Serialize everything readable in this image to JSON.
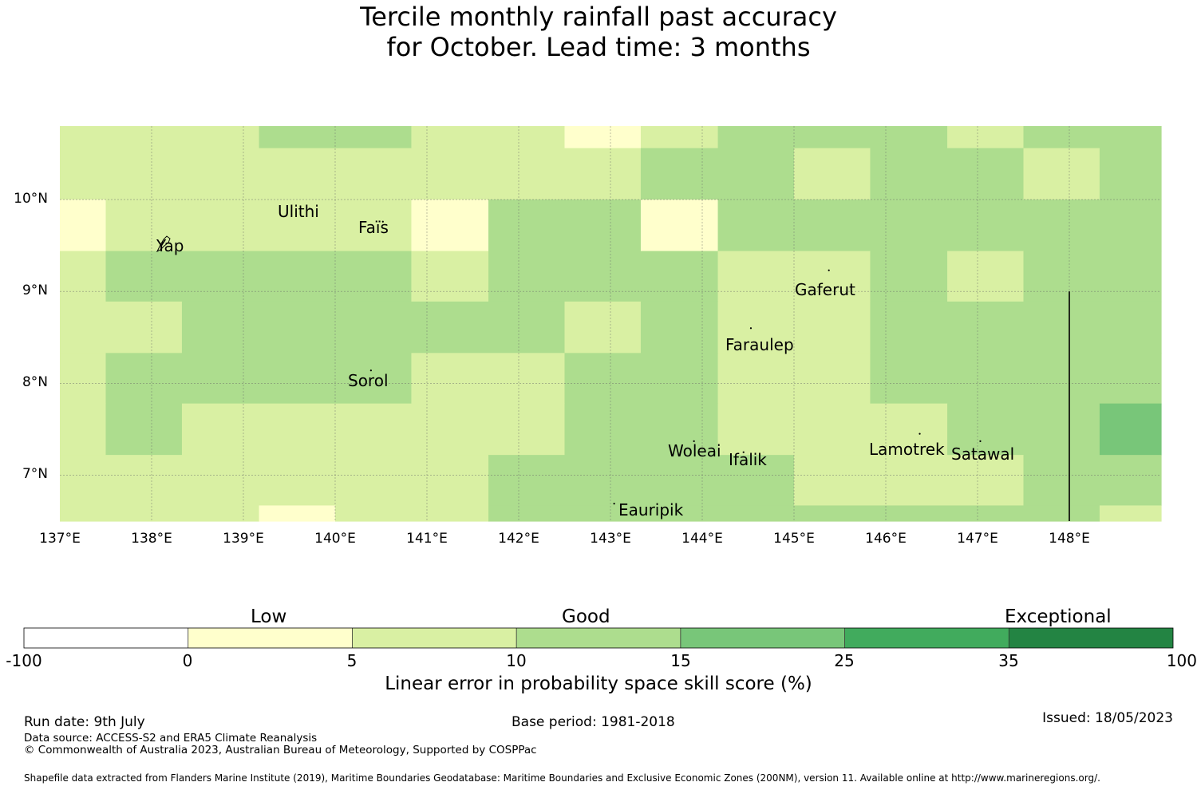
{
  "title": {
    "line1": "Tercile monthly rainfall past accuracy",
    "line2": "for October. Lead time: 3 months"
  },
  "map": {
    "lon_range": [
      137.0,
      149.0
    ],
    "lat_range": [
      6.5,
      10.8
    ],
    "lat_ticks": [
      "10°N",
      "9°N",
      "8°N",
      "7°N"
    ],
    "lon_ticks": [
      "137°E",
      "138°E",
      "139°E",
      "140°E",
      "141°E",
      "142°E",
      "143°E",
      "144°E",
      "145°E",
      "146°E",
      "147°E",
      "148°E"
    ],
    "gridlines": true,
    "palette": {
      "1": "#ffffcc",
      "2": "#d9f0a3",
      "3": "#addd8e",
      "4": "#78c679"
    },
    "rows": [
      {
        "lat_top": 10.8,
        "lat_bottom": 10.56,
        "cells": [
          [
            137.0,
            139.17,
            2
          ],
          [
            139.17,
            140.83,
            3
          ],
          [
            140.83,
            142.5,
            2
          ],
          [
            142.5,
            143.33,
            1
          ],
          [
            143.33,
            144.17,
            2
          ],
          [
            144.17,
            146.67,
            3
          ],
          [
            146.67,
            147.5,
            2
          ],
          [
            147.5,
            149.0,
            3
          ]
        ]
      },
      {
        "lat_top": 10.56,
        "lat_bottom": 10.0,
        "cells": [
          [
            137.0,
            143.33,
            2
          ],
          [
            143.33,
            145.0,
            3
          ],
          [
            145.0,
            145.83,
            2
          ],
          [
            145.83,
            147.5,
            3
          ],
          [
            147.5,
            148.33,
            2
          ],
          [
            148.33,
            149.0,
            3
          ]
        ]
      },
      {
        "lat_top": 10.0,
        "lat_bottom": 9.44,
        "cells": [
          [
            137.0,
            137.5,
            1
          ],
          [
            137.5,
            140.83,
            2
          ],
          [
            140.83,
            141.67,
            1
          ],
          [
            141.67,
            143.33,
            3
          ],
          [
            143.33,
            144.17,
            1
          ],
          [
            144.17,
            149.0,
            3
          ]
        ]
      },
      {
        "lat_top": 9.44,
        "lat_bottom": 8.89,
        "cells": [
          [
            137.0,
            137.5,
            2
          ],
          [
            137.5,
            140.83,
            3
          ],
          [
            140.83,
            141.67,
            2
          ],
          [
            141.67,
            144.17,
            3
          ],
          [
            144.17,
            145.83,
            2
          ],
          [
            145.83,
            146.67,
            3
          ],
          [
            146.67,
            147.5,
            2
          ],
          [
            147.5,
            149.0,
            3
          ]
        ]
      },
      {
        "lat_top": 8.89,
        "lat_bottom": 8.33,
        "cells": [
          [
            137.0,
            138.33,
            2
          ],
          [
            138.33,
            142.5,
            3
          ],
          [
            142.5,
            143.33,
            2
          ],
          [
            143.33,
            144.17,
            3
          ],
          [
            144.17,
            145.83,
            2
          ],
          [
            145.83,
            149.0,
            3
          ]
        ]
      },
      {
        "lat_top": 8.33,
        "lat_bottom": 7.78,
        "cells": [
          [
            137.0,
            137.5,
            2
          ],
          [
            137.5,
            140.83,
            3
          ],
          [
            140.83,
            142.5,
            2
          ],
          [
            142.5,
            144.17,
            3
          ],
          [
            144.17,
            145.83,
            2
          ],
          [
            145.83,
            149.0,
            3
          ]
        ]
      },
      {
        "lat_top": 7.78,
        "lat_bottom": 7.22,
        "cells": [
          [
            137.0,
            137.5,
            2
          ],
          [
            137.5,
            138.33,
            3
          ],
          [
            138.33,
            142.5,
            2
          ],
          [
            142.5,
            144.17,
            3
          ],
          [
            144.17,
            146.67,
            2
          ],
          [
            146.67,
            148.33,
            3
          ],
          [
            148.33,
            149.0,
            4
          ]
        ]
      },
      {
        "lat_top": 7.22,
        "lat_bottom": 6.67,
        "cells": [
          [
            137.0,
            141.67,
            2
          ],
          [
            141.67,
            145.0,
            3
          ],
          [
            145.0,
            147.5,
            2
          ],
          [
            147.5,
            149.0,
            3
          ]
        ]
      },
      {
        "lat_top": 6.67,
        "lat_bottom": 6.5,
        "cells": [
          [
            137.0,
            139.17,
            2
          ],
          [
            139.17,
            140.0,
            1
          ],
          [
            140.0,
            141.67,
            2
          ],
          [
            141.67,
            148.33,
            3
          ],
          [
            148.33,
            149.0,
            2
          ]
        ]
      }
    ],
    "boundary_line": {
      "lon": 148.0,
      "lat_from": 9.0,
      "lat_to": 6.5
    },
    "places": [
      {
        "name": "Ulithi",
        "lon": 139.72,
        "lat": 9.9
      },
      {
        "name": "Faïs",
        "lon": 140.52,
        "lat": 9.76
      },
      {
        "name": "Yap",
        "lon": 138.12,
        "lat": 9.53
      },
      {
        "name": "Gaferut",
        "lon": 145.38,
        "lat": 9.23
      },
      {
        "name": "Faraulep",
        "lon": 144.53,
        "lat": 8.6
      },
      {
        "name": "Sorol",
        "lon": 140.39,
        "lat": 8.14
      },
      {
        "name": "Woleai",
        "lon": 143.91,
        "lat": 7.37
      },
      {
        "name": "Ifalik",
        "lon": 144.45,
        "lat": 7.25
      },
      {
        "name": "Lamotrek",
        "lon": 146.37,
        "lat": 7.45
      },
      {
        "name": "Satawal",
        "lon": 147.03,
        "lat": 7.37
      },
      {
        "name": "Eauripik",
        "lon": 143.04,
        "lat": 6.69
      }
    ]
  },
  "colorbar": {
    "categories": [
      "Low",
      "Good",
      "Exceptional"
    ],
    "ticks": [
      "-100",
      "0",
      "5",
      "10",
      "15",
      "25",
      "35",
      "100"
    ],
    "colors": [
      "#ffffff",
      "#ffffcc",
      "#d9f0a3",
      "#addd8e",
      "#78c679",
      "#41ab5d",
      "#238443"
    ],
    "label": "Linear error in probability space skill score (%)"
  },
  "footer": {
    "run_date": "Run date: 9th July",
    "base_period": "Base period: 1981-2018",
    "issued": "Issued: 18/05/2023",
    "data_source": "Data source: ACCESS-S2 and ERA5 Climate Reanalysis",
    "copyright": "© Commonwealth of Australia 2023, Australian Bureau of Meteorology, Supported by COSPPac",
    "shapefile": "Shapefile data extracted from Flanders Marine Institute (2019), Maritime Boundaries Geodatabase: Maritime Boundaries and Exclusive Economic Zones (200NM), version 11. Available online at http://www.marineregions.org/."
  }
}
